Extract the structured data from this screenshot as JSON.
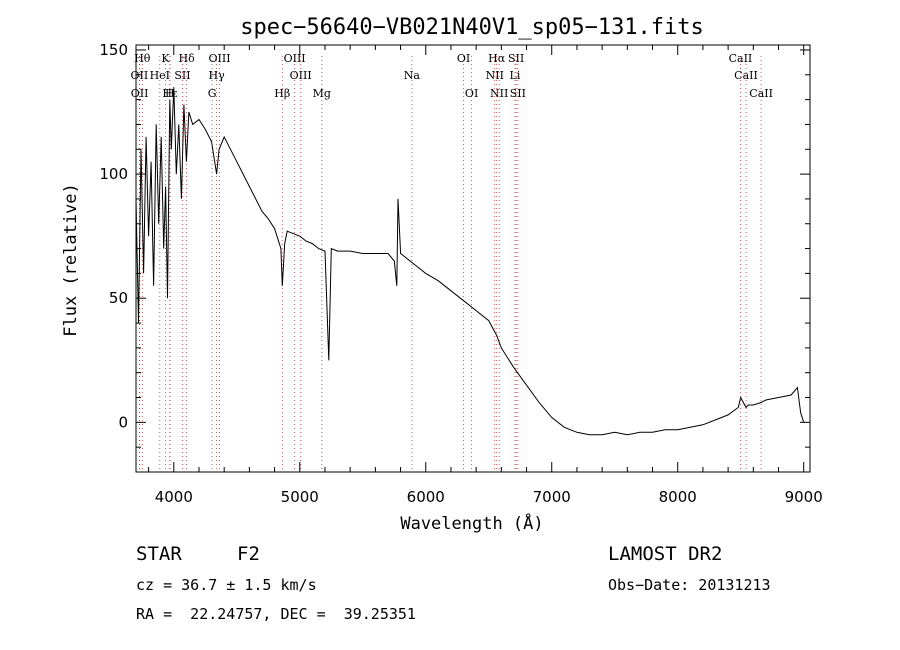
{
  "chart_data": {
    "type": "line",
    "title": "spec−56640−VB021N40V1_sp05−131.fits",
    "xlabel": "Wavelength (Å)",
    "ylabel": "Flux (relative)",
    "xlim": [
      3700,
      9050
    ],
    "ylim": [
      -20,
      152
    ],
    "xticks": [
      4000,
      5000,
      6000,
      7000,
      8000,
      9000
    ],
    "yticks": [
      0,
      50,
      100,
      150
    ],
    "series": [
      {
        "x": [
          3700,
          3720,
          3740,
          3760,
          3780,
          3800,
          3820,
          3840,
          3860,
          3880,
          3900,
          3920,
          3935,
          3950,
          3968,
          3980,
          4000,
          4020,
          4040,
          4060,
          4080,
          4100,
          4120,
          4150,
          4200,
          4250,
          4300,
          4340,
          4360,
          4400,
          4450,
          4500,
          4550,
          4600,
          4650,
          4700,
          4750,
          4800,
          4850,
          4861,
          4880,
          4900,
          4950,
          5000,
          5050,
          5100,
          5150,
          5200,
          5230,
          5250,
          5300,
          5400,
          5500,
          5600,
          5700,
          5750,
          5770,
          5780,
          5800,
          5850,
          5900,
          6000,
          6100,
          6200,
          6300,
          6400,
          6500,
          6563,
          6600,
          6700,
          6800,
          6900,
          7000,
          7100,
          7200,
          7300,
          7400,
          7500,
          7600,
          7700,
          7800,
          7900,
          8000,
          8100,
          8200,
          8300,
          8400,
          8480,
          8500,
          8542,
          8560,
          8600,
          8662,
          8700,
          8800,
          8900,
          8950,
          8975,
          9000
        ],
        "y": [
          90,
          40,
          110,
          60,
          115,
          75,
          105,
          55,
          120,
          80,
          115,
          70,
          95,
          50,
          130,
          110,
          135,
          100,
          120,
          90,
          128,
          105,
          125,
          120,
          122,
          118,
          113,
          100,
          110,
          115,
          110,
          105,
          100,
          95,
          90,
          85,
          82,
          78,
          70,
          55,
          72,
          77,
          76,
          75,
          73,
          72,
          70,
          69,
          25,
          70,
          69,
          69,
          68,
          68,
          68,
          65,
          55,
          90,
          68,
          66,
          64,
          60,
          57,
          53,
          49,
          45,
          41,
          35,
          30,
          22,
          15,
          8,
          2,
          -2,
          -4,
          -5,
          -5,
          -4,
          -5,
          -4,
          -4,
          -3,
          -3,
          -2,
          -1,
          1,
          3,
          6,
          10,
          6,
          7,
          7,
          8,
          9,
          10,
          11,
          14,
          4,
          0
        ]
      }
    ]
  },
  "spectral_lines": [
    {
      "name": "Hθ",
      "row": 1
    },
    {
      "name": "K",
      "row": 1
    },
    {
      "name": "Hδ",
      "row": 1
    },
    {
      "name": "OIII",
      "row": 1
    },
    {
      "name": "OIII",
      "row": 1
    },
    {
      "name": "OI",
      "row": 1
    },
    {
      "name": "Hα",
      "row": 1
    },
    {
      "name": "SII",
      "row": 1
    },
    {
      "name": "CaII",
      "row": 1
    },
    {
      "name": "OII",
      "row": 2
    },
    {
      "name": "HeI",
      "row": 2
    },
    {
      "name": "SII",
      "row": 2
    },
    {
      "name": "Hγ",
      "row": 2
    },
    {
      "name": "OIII",
      "row": 2
    },
    {
      "name": "Na",
      "row": 2
    },
    {
      "name": "NII",
      "row": 2
    },
    {
      "name": "Li",
      "row": 2
    },
    {
      "name": "CaII",
      "row": 2
    },
    {
      "name": "OII",
      "row": 3
    },
    {
      "name": "Hε",
      "row": 3
    },
    {
      "name": "H",
      "row": 3
    },
    {
      "name": "G",
      "row": 3
    },
    {
      "name": "Hβ",
      "row": 3
    },
    {
      "name": "Mg",
      "row": 3
    },
    {
      "name": "OI",
      "row": 3
    },
    {
      "name": "NII",
      "row": 3
    },
    {
      "name": "SII",
      "row": 3
    },
    {
      "name": "CaII",
      "row": 3
    }
  ],
  "info": {
    "class": "STAR",
    "subclass": "F2",
    "survey": "LAMOST DR2",
    "cz": "cz = 36.7 ± 1.5 km/s",
    "obs_date": "Obs−Date: 20131213",
    "radec": "RA =  22.24757, DEC =  39.25351"
  }
}
